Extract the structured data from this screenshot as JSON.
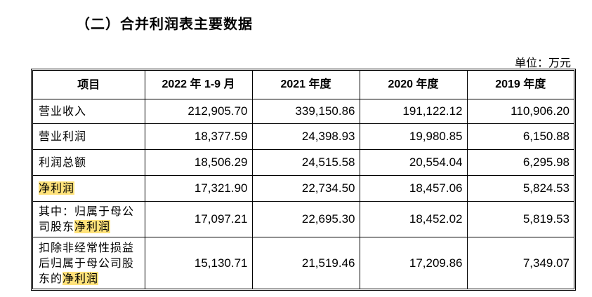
{
  "section_title": "（二）合并利润表主要数据",
  "unit": "单位：万元",
  "table": {
    "headers": [
      "项目",
      "2022 年 1-9 月",
      "2021 年度",
      "2020 年度",
      "2019 年度"
    ],
    "rows": [
      {
        "label": "营业收入",
        "label_pre": "营业收入",
        "label_highlight": "",
        "values": [
          "212,905.70",
          "339,150.86",
          "191,122.12",
          "110,906.20"
        ]
      },
      {
        "label": "营业利润",
        "label_pre": "营业利润",
        "label_highlight": "",
        "values": [
          "18,377.59",
          "24,398.93",
          "19,980.85",
          "6,150.88"
        ]
      },
      {
        "label": "利润总额",
        "label_pre": "利润总额",
        "label_highlight": "",
        "values": [
          "18,506.29",
          "24,515.58",
          "20,554.04",
          "6,295.98"
        ]
      },
      {
        "label": "净利润",
        "label_pre": "",
        "label_highlight": "净利润",
        "values": [
          "17,321.90",
          "22,734.50",
          "18,457.06",
          "5,824.53"
        ]
      },
      {
        "label": "其中：归属于母公司股东净利润",
        "label_pre": "其中：归属于母公司股东",
        "label_highlight": "净利润",
        "values": [
          "17,097.21",
          "22,695.30",
          "18,452.02",
          "5,819.53"
        ]
      },
      {
        "label": "扣除非经常性损益后归属于母公司股东的净利润",
        "label_pre": "扣除非经常性损益后归属于母公司股东的",
        "label_highlight": "净利润",
        "values": [
          "15,130.71",
          "21,519.46",
          "17,209.86",
          "7,349.07"
        ]
      }
    ]
  },
  "colors": {
    "highlight": "#ffe27a"
  }
}
